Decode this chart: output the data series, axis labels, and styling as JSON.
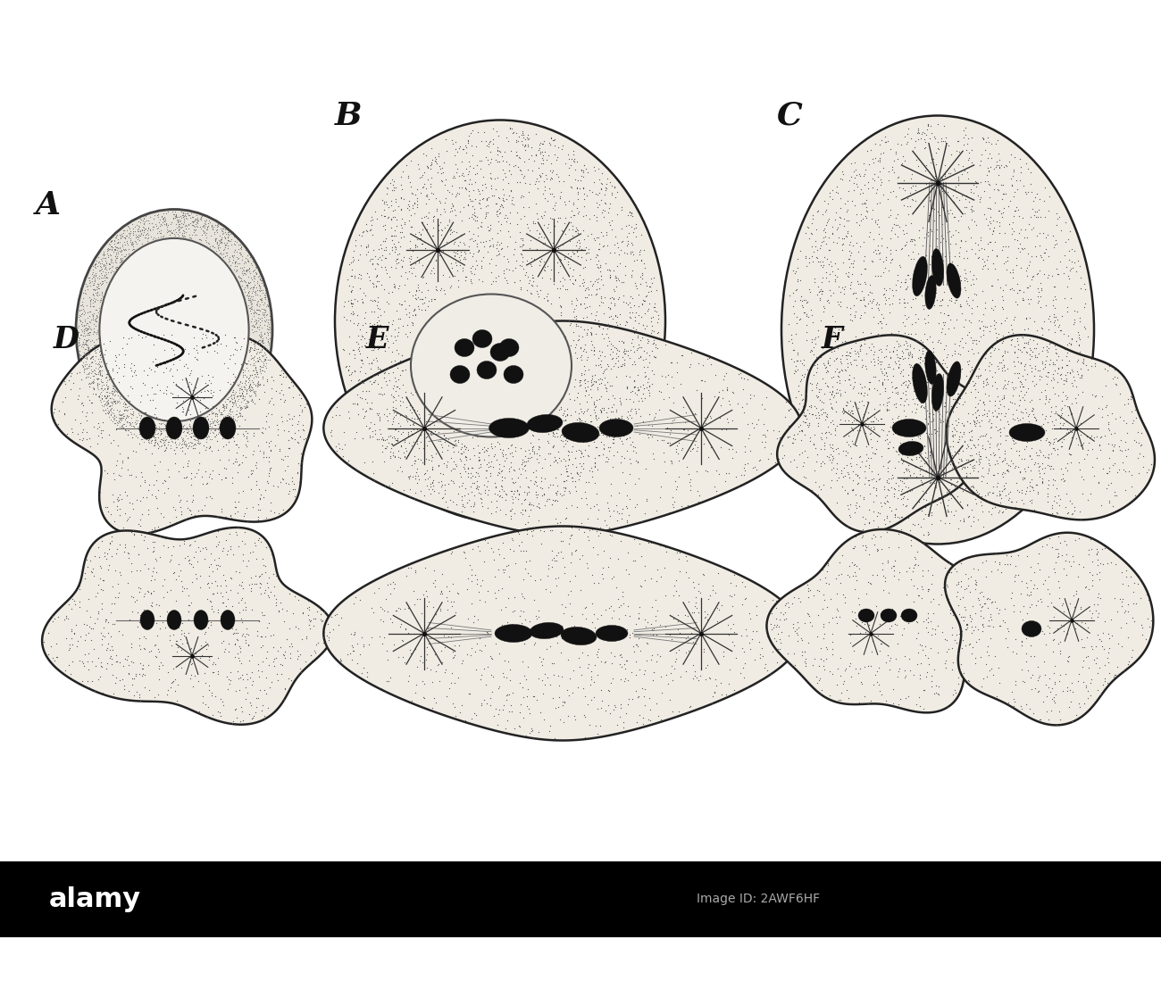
{
  "bg_color": "#ffffff",
  "cell_fill": "#f0ece4",
  "cell_edge": "#222222",
  "cell_lw": 1.8,
  "stipple_color": "#555555",
  "stipple_size": 0.8,
  "nucleus_fill": "#f8f6f2",
  "nucleus_edge": "#444444",
  "chrom_color": "#111111",
  "label_color": "#111111",
  "label_fontsize": 26,
  "watermark_bg": "#000000",
  "watermark_text": "alamy",
  "watermark_color": "#ffffff",
  "watermark_fontsize": 22,
  "id_text": "Image ID: 2AWF6HF",
  "id_color": "#aaaaaa",
  "labels": [
    "A",
    "B",
    "C",
    "D",
    "E",
    "F"
  ]
}
